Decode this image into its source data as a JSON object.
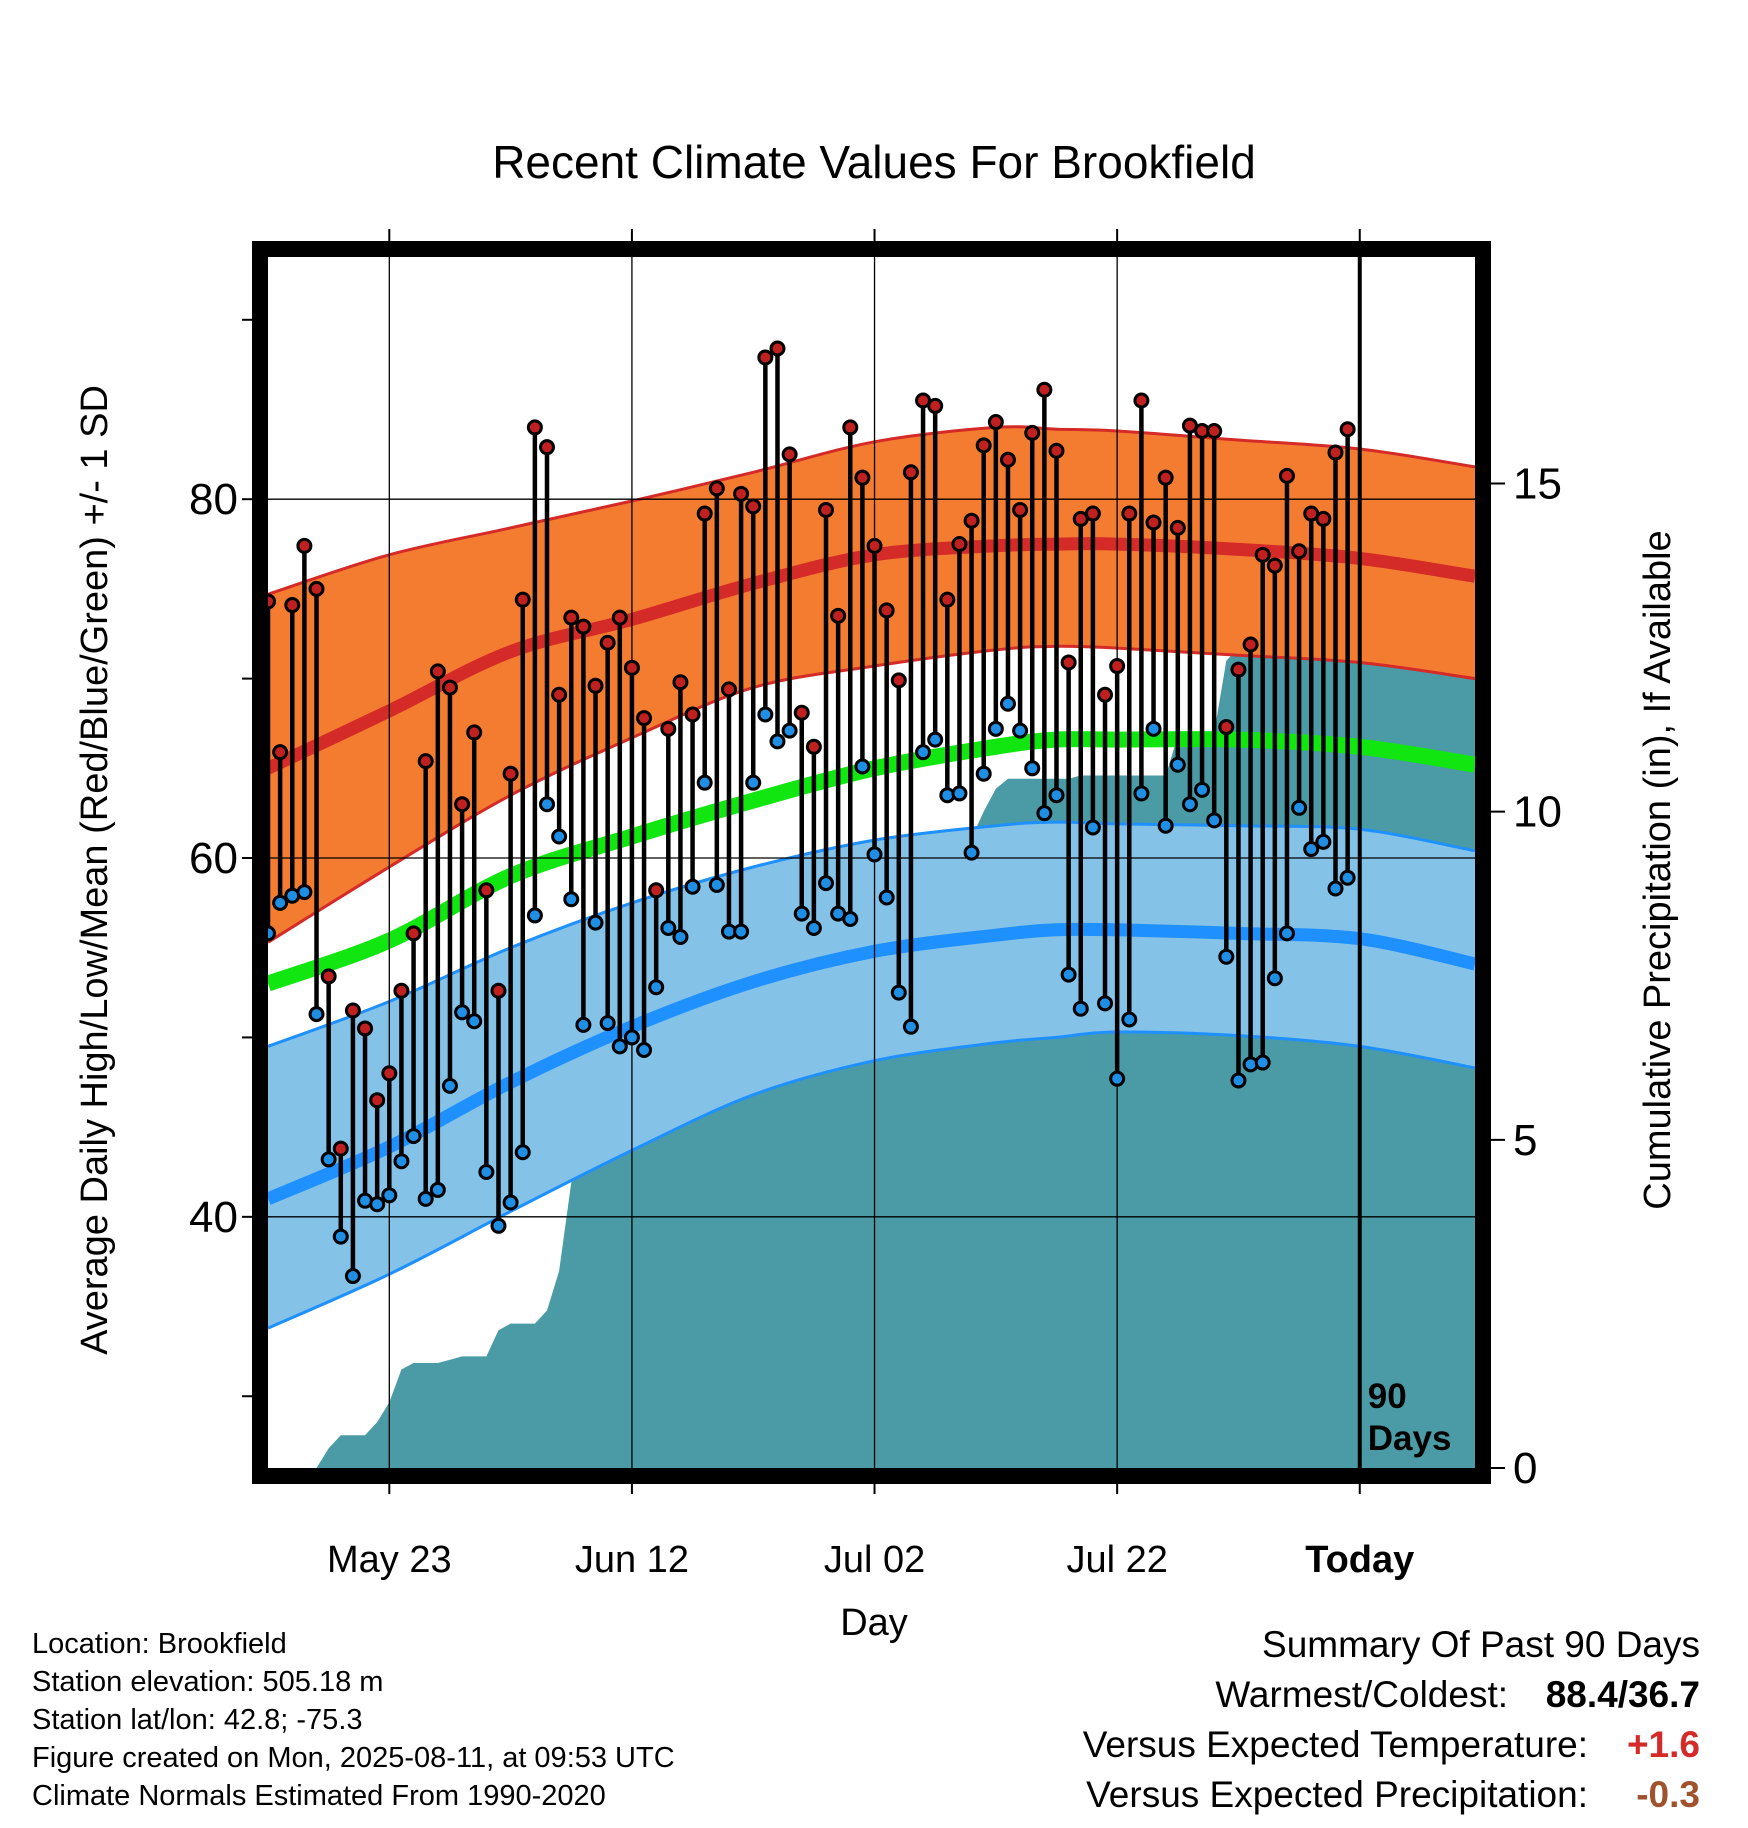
{
  "chart_data": {
    "type": "line",
    "title": "Recent Climate Values For Brookfield",
    "xlabel": "Day",
    "ylabel": "Average Daily High/Low/Mean (Red/Blue/Green) +/- 1 SD",
    "y2label": "Cumulative Precipitation (in), If Available",
    "ylim": [
      26,
      93.5
    ],
    "y2lim": [
      0,
      18.45
    ],
    "yticks": [
      40,
      60,
      80
    ],
    "y2ticks": [
      0,
      5,
      10,
      15
    ],
    "x_ticks": [
      "May 23",
      "Jun 12",
      "Jul 02",
      "Jul 22",
      "Today"
    ],
    "x_tick_days": [
      10,
      30,
      50,
      70,
      90
    ],
    "xlim": [
      0,
      99.5
    ],
    "today_marker": "90\nDays",
    "grid": true,
    "colors": {
      "high_band": "#f47c30",
      "high_line": "#d42a28",
      "low_band": "#84c2e8",
      "low_line": "#1e90ff",
      "mean_line": "#11e611",
      "precip": "#4a9ba5",
      "high_dot": "#c0201f",
      "low_dot": "#1f8fe6",
      "warm_value": "#d42a28",
      "precip_value": "#a0522d"
    },
    "normals": {
      "days": [
        0,
        10,
        20,
        30,
        40,
        50,
        60,
        65,
        70,
        80,
        90,
        99.5
      ],
      "high_mean": [
        65.0,
        68.2,
        71.5,
        73.3,
        75.3,
        76.9,
        77.4,
        77.5,
        77.5,
        77.2,
        76.7,
        75.7
      ],
      "high_upper": [
        74.7,
        76.9,
        78.4,
        79.9,
        81.5,
        83.2,
        84.0,
        83.9,
        83.8,
        83.3,
        82.8,
        81.8
      ],
      "high_lower": [
        55.3,
        59.5,
        63.5,
        66.7,
        69.5,
        70.7,
        71.6,
        71.8,
        71.7,
        71.3,
        70.9,
        70.0
      ],
      "mean_normal": [
        53.0,
        55.4,
        59.0,
        61.2,
        63.2,
        65.0,
        66.2,
        66.6,
        66.6,
        66.6,
        66.2,
        65.2
      ],
      "low_mean": [
        41.0,
        43.9,
        47.5,
        50.6,
        53.1,
        54.8,
        55.7,
        56.0,
        56.0,
        55.8,
        55.5,
        54.1
      ],
      "low_upper": [
        49.5,
        52.0,
        55.0,
        57.5,
        59.5,
        61.0,
        61.8,
        62.0,
        61.9,
        61.8,
        61.6,
        60.4
      ],
      "low_lower": [
        33.8,
        36.8,
        40.3,
        43.7,
        46.8,
        48.7,
        49.7,
        50.0,
        50.3,
        50.1,
        49.5,
        48.3
      ]
    },
    "daily": {
      "highs": [
        74.3,
        65.9,
        74.1,
        77.4,
        75.0,
        53.4,
        43.8,
        51.5,
        50.5,
        46.5,
        48.0,
        52.6,
        55.8,
        65.4,
        70.4,
        69.5,
        63.0,
        67.0,
        58.2,
        52.6,
        64.7,
        74.4,
        84.0,
        82.9,
        69.1,
        73.4,
        72.9,
        69.6,
        72.0,
        73.4,
        70.6,
        67.8,
        58.2,
        67.2,
        69.8,
        68.0,
        79.2,
        80.6,
        69.4,
        80.3,
        79.6,
        87.9,
        88.4,
        82.5,
        68.1,
        66.2,
        79.4,
        73.5,
        84.0,
        81.2,
        77.4,
        73.8,
        69.9,
        81.5,
        85.5,
        85.2,
        74.4,
        77.5,
        78.8,
        83.0,
        84.3,
        82.2,
        79.4,
        83.7,
        86.1,
        82.7,
        70.9,
        78.9,
        79.2,
        69.1,
        70.7,
        79.2,
        85.5,
        78.7,
        81.2,
        78.4,
        84.1,
        83.8,
        83.8,
        67.3,
        70.5,
        71.9,
        76.9,
        76.3,
        81.3,
        77.1,
        79.2,
        78.9,
        82.6,
        83.9
      ],
      "lows": [
        55.8,
        57.5,
        57.9,
        58.1,
        51.3,
        43.2,
        38.9,
        36.7,
        40.9,
        40.7,
        41.2,
        43.1,
        44.5,
        41.0,
        41.5,
        47.3,
        51.4,
        50.9,
        42.5,
        39.5,
        40.8,
        43.6,
        56.8,
        63.0,
        61.2,
        57.7,
        50.7,
        56.4,
        50.8,
        49.5,
        50.0,
        49.3,
        52.8,
        56.1,
        55.6,
        58.4,
        64.2,
        58.5,
        55.9,
        55.9,
        64.2,
        68.0,
        66.5,
        67.1,
        56.9,
        56.1,
        58.6,
        56.9,
        56.6,
        65.1,
        60.2,
        57.8,
        52.5,
        50.6,
        65.9,
        66.6,
        63.5,
        63.6,
        60.3,
        64.7,
        67.2,
        68.6,
        67.1,
        65.0,
        62.5,
        63.5,
        53.5,
        51.6,
        61.7,
        51.9,
        47.7,
        51.0,
        63.6,
        67.2,
        61.8,
        65.2,
        63.0,
        63.8,
        62.1,
        54.5,
        47.6,
        48.5,
        48.6,
        53.3,
        55.8,
        62.8,
        60.5,
        60.9,
        58.3,
        58.9
      ]
    },
    "precip_cumulative": {
      "days": [
        0,
        4,
        5,
        6,
        7,
        8,
        9,
        10,
        11,
        12,
        13,
        14,
        15,
        16,
        17,
        18,
        19,
        20,
        21,
        22,
        23,
        24,
        25,
        26,
        27,
        28,
        29,
        30,
        31,
        32,
        33,
        34,
        35,
        36,
        37,
        38,
        39,
        40,
        41,
        42,
        43,
        44,
        45,
        46,
        47,
        48,
        49,
        50,
        51,
        52,
        53,
        54,
        55,
        56,
        57,
        58,
        59,
        60,
        61,
        62,
        63,
        64,
        65,
        66,
        67,
        68,
        69,
        70,
        71,
        72,
        73,
        74,
        75,
        76,
        77,
        78,
        79,
        80,
        81,
        82,
        83,
        84,
        85,
        86,
        87,
        88,
        89,
        90,
        99.5
      ],
      "values": [
        0,
        0,
        0.3,
        0.5,
        0.5,
        0.5,
        0.7,
        1.0,
        1.5,
        1.6,
        1.6,
        1.6,
        1.65,
        1.7,
        1.7,
        1.7,
        2.1,
        2.2,
        2.2,
        2.2,
        2.4,
        3.0,
        4.35,
        4.5,
        4.85,
        5.0,
        5.0,
        5.05,
        5.2,
        5.4,
        5.4,
        5.45,
        5.5,
        5.55,
        5.65,
        5.7,
        8.9,
        8.9,
        8.9,
        9.05,
        9.1,
        9.1,
        9.15,
        9.25,
        9.3,
        9.35,
        9.35,
        9.4,
        9.45,
        9.45,
        9.45,
        9.5,
        9.55,
        9.55,
        9.55,
        9.6,
        10.0,
        10.35,
        10.5,
        10.5,
        10.5,
        10.5,
        10.5,
        10.5,
        10.55,
        10.55,
        10.55,
        10.55,
        10.55,
        10.55,
        10.55,
        10.55,
        11.15,
        11.15,
        11.15,
        11.2,
        12.3,
        12.5,
        12.5,
        12.5,
        12.5,
        12.5,
        12.5,
        12.5,
        12.5,
        12.5,
        12.5,
        12.5,
        12.5
      ]
    }
  },
  "info": {
    "location": "Location: Brookfield",
    "elevation": "Station elevation: 505.18 m",
    "latlon": "Station lat/lon: 42.8; -75.3",
    "created": "Figure created on Mon, 2025-08-11, at 09:53 UTC",
    "normals": "Climate Normals Estimated From 1990-2020"
  },
  "summary": {
    "title": "Summary Of Past 90 Days",
    "warmest_label": "Warmest/Coldest:",
    "warmest_value": "88.4/36.7",
    "temp_label": "Versus Expected Temperature:",
    "temp_value": "+1.6",
    "precip_label": "Versus Expected Precipitation:",
    "precip_value": "-0.3"
  }
}
